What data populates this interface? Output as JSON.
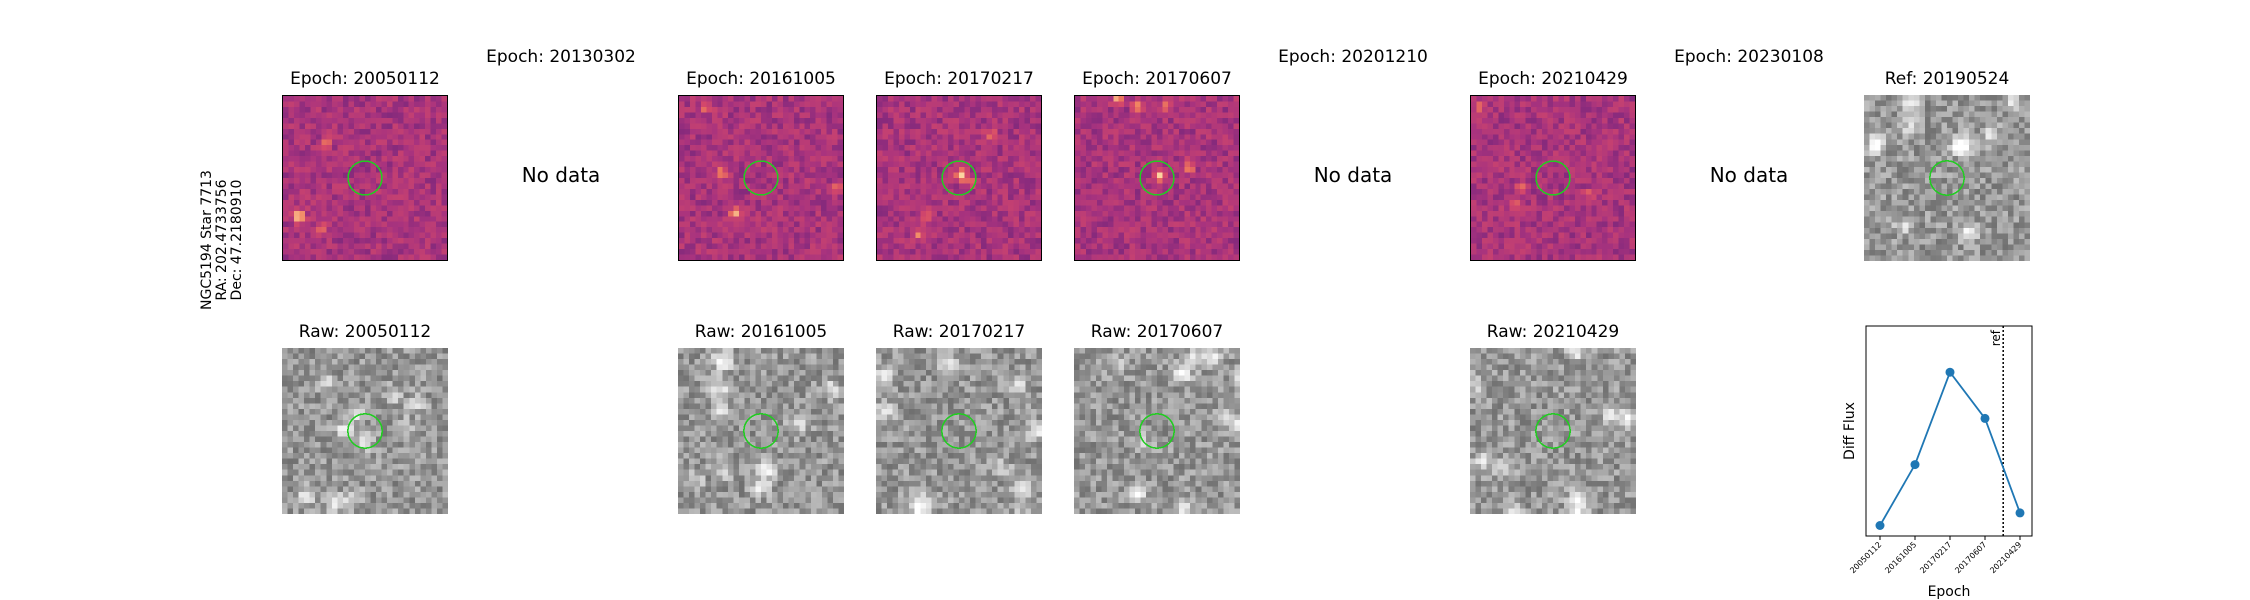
{
  "target": {
    "label_lines": [
      "NGC5194 Star 7713",
      "RA: 202.4733756",
      "Dec: 47.2180910"
    ]
  },
  "epoch_columns": [
    {
      "epoch_title": "Epoch: 20050112",
      "raw_title": "Raw: 20050112",
      "has_data": true
    },
    {
      "epoch_title": "Epoch: 20130302",
      "raw_title": "",
      "has_data": false,
      "no_data_label": "No data"
    },
    {
      "epoch_title": "Epoch: 20161005",
      "raw_title": "Raw: 20161005",
      "has_data": true
    },
    {
      "epoch_title": "Epoch: 20170217",
      "raw_title": "Raw: 20170217",
      "has_data": true
    },
    {
      "epoch_title": "Epoch: 20170607",
      "raw_title": "Raw: 20170607",
      "has_data": true
    },
    {
      "epoch_title": "Epoch: 20201210",
      "raw_title": "",
      "has_data": false,
      "no_data_label": "No data"
    },
    {
      "epoch_title": "Epoch: 20210429",
      "raw_title": "Raw: 20210429",
      "has_data": true
    },
    {
      "epoch_title": "Epoch: 20230108",
      "raw_title": "",
      "has_data": false,
      "no_data_label": "No data"
    }
  ],
  "reference": {
    "title": "Ref: 20190524"
  },
  "colors": {
    "diff_colormap": [
      "#1a0c3f",
      "#5a1e7a",
      "#a8337e",
      "#d4486a",
      "#f07e5c",
      "#fcd4a0"
    ],
    "raw_colormap": [
      "#3a3a3a",
      "#7a7a7a",
      "#cfcfcf",
      "#ffffff"
    ],
    "circle": "#22cc22",
    "series": "#1f77b4"
  },
  "chart_data": {
    "type": "line",
    "xlabel": "Epoch",
    "ylabel": "Diff Flux",
    "x": [
      "20050112",
      "20161005",
      "20170217",
      "20170607",
      "20210429"
    ],
    "series": [
      {
        "values": [
          0.05,
          0.34,
          0.78,
          0.56,
          0.11
        ],
        "marker": "circle"
      }
    ],
    "reference_line": {
      "label": "ref",
      "position_between": [
        "20170607",
        "20210429"
      ],
      "style": "dotted"
    },
    "yticks_shown": false,
    "grid": false
  }
}
